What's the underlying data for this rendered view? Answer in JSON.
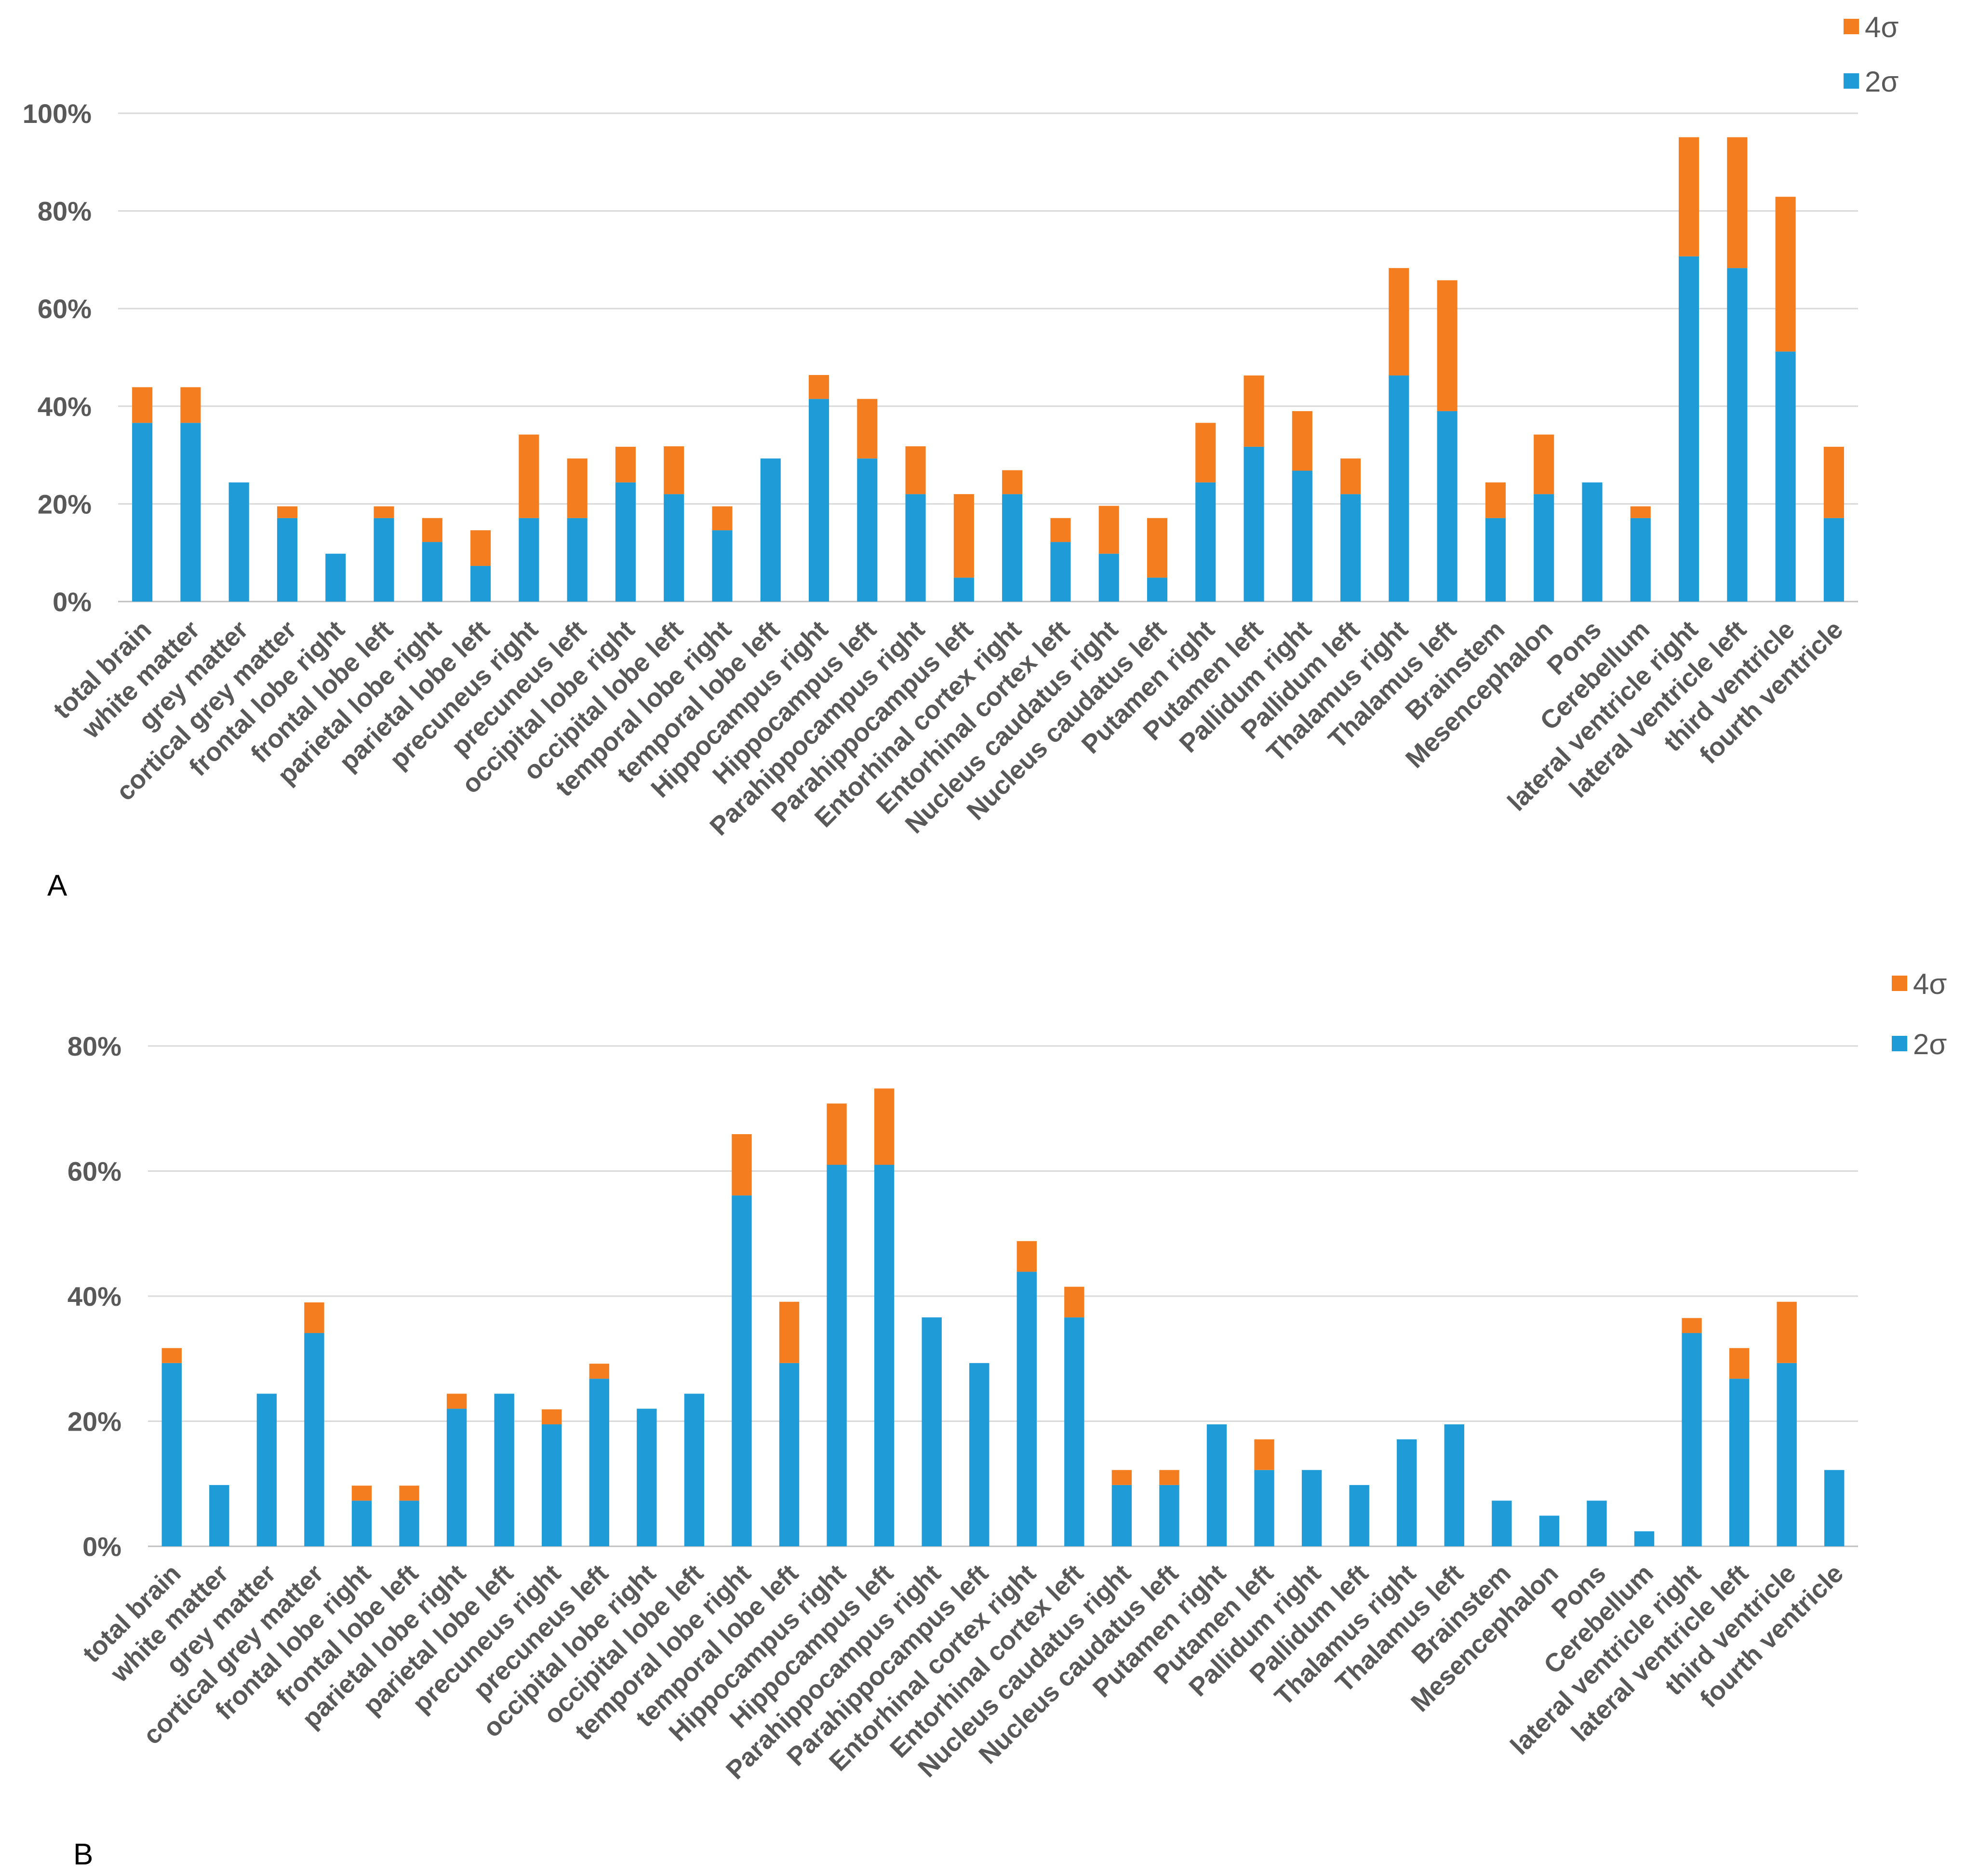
{
  "colors": {
    "series_2sigma": "#1f9bd7",
    "series_4sigma": "#f47d20",
    "text": "#595959",
    "grid": "#d9d9d9"
  },
  "chart_data": [
    {
      "panel_label": "A",
      "type": "bar",
      "stacked": true,
      "title": "",
      "xlabel": "",
      "ylabel": "",
      "ylim": [
        0,
        100
      ],
      "y_ticks": [
        "0%",
        "20%",
        "40%",
        "60%",
        "80%",
        "100%"
      ],
      "grid": true,
      "legend_position": "top-right",
      "legend": [
        "4σ",
        "2σ"
      ],
      "categories": [
        "total brain",
        "white matter",
        "grey matter",
        "cortical grey matter",
        "frontal lobe right",
        "frontal lobe left",
        "parietal lobe right",
        "parietal lobe left",
        "precuneus right",
        "precuneus left",
        "occipital lobe right",
        "occipital lobe left",
        "temporal lobe right",
        "temporal lobe left",
        "Hippocampus right",
        "Hippocampus left",
        "Parahippocampus right",
        "Parahippocampus left",
        "Entorhinal cortex right",
        "Entorhinal cortex left",
        "Nucleus caudatus right",
        "Nucleus caudatus left",
        "Putamen right",
        "Putamen left",
        "Pallidum right",
        "Pallidum left",
        "Thalamus right",
        "Thalamus left",
        "Brainstem",
        "Mesencephalon",
        "Pons",
        "Cerebellum",
        "lateral ventricle right",
        "lateral ventricle left",
        "third ventricle",
        "fourth ventricle"
      ],
      "series": [
        {
          "name": "2σ",
          "values": [
            36.6,
            36.6,
            24.4,
            17.1,
            9.8,
            17.1,
            12.2,
            7.3,
            17.1,
            17.1,
            24.4,
            22.0,
            14.6,
            29.3,
            41.5,
            29.3,
            22.0,
            4.9,
            22.0,
            12.2,
            9.8,
            4.9,
            24.4,
            31.7,
            26.8,
            22.0,
            46.3,
            39.0,
            17.1,
            22.0,
            24.4,
            17.1,
            70.7,
            68.3,
            51.2,
            17.1
          ]
        },
        {
          "name": "4σ",
          "values": [
            7.3,
            7.3,
            0,
            2.4,
            0,
            2.4,
            4.9,
            7.3,
            17.1,
            12.2,
            7.3,
            9.8,
            4.9,
            0,
            4.9,
            12.2,
            9.8,
            17.1,
            4.9,
            4.9,
            9.8,
            12.2,
            12.2,
            14.6,
            12.2,
            7.3,
            22.0,
            26.8,
            7.3,
            12.2,
            0,
            2.4,
            24.4,
            26.8,
            31.7,
            14.6
          ]
        }
      ]
    },
    {
      "panel_label": "B",
      "type": "bar",
      "stacked": true,
      "title": "",
      "xlabel": "",
      "ylabel": "",
      "ylim": [
        0,
        80
      ],
      "y_ticks": [
        "0%",
        "20%",
        "40%",
        "60%",
        "80%"
      ],
      "grid": true,
      "legend_position": "top-right",
      "legend": [
        "4σ",
        "2σ"
      ],
      "categories": [
        "total brain",
        "white matter",
        "grey matter",
        "cortical grey matter",
        "frontal lobe right",
        "frontal lobe left",
        "parietal lobe right",
        "parietal lobe left",
        "precuneus right",
        "precuneus left",
        "occipital lobe right",
        "occipital lobe left",
        "temporal lobe right",
        "temporal lobe left",
        "Hippocampus right",
        "Hippocampus left",
        "Parahippocampus right",
        "Parahippocampus left",
        "Entorhinal cortex right",
        "Entorhinal cortex left",
        "Nucleus caudatus right",
        "Nucleus caudatus left",
        "Putamen right",
        "Putamen left",
        "Pallidum right",
        "Pallidum left",
        "Thalamus right",
        "Thalamus left",
        "Brainstem",
        "Mesencephalon",
        "Pons",
        "Cerebellum",
        "lateral ventricle right",
        "lateral ventricle left",
        "third ventricle",
        "fourth ventricle"
      ],
      "series": [
        {
          "name": "2σ",
          "values": [
            29.3,
            9.8,
            24.4,
            34.1,
            7.3,
            7.3,
            22.0,
            24.4,
            19.5,
            26.8,
            22.0,
            24.4,
            56.1,
            29.3,
            61.0,
            61.0,
            36.6,
            29.3,
            43.9,
            36.6,
            9.8,
            9.8,
            19.5,
            12.2,
            12.2,
            9.8,
            17.1,
            19.5,
            7.3,
            4.9,
            7.3,
            2.4,
            34.1,
            26.8,
            29.3,
            12.2
          ]
        },
        {
          "name": "4σ",
          "values": [
            2.4,
            0,
            0,
            4.9,
            2.4,
            2.4,
            2.4,
            0,
            2.4,
            2.4,
            0,
            0,
            9.8,
            9.8,
            9.8,
            12.2,
            0,
            0,
            4.9,
            4.9,
            2.4,
            2.4,
            0,
            4.9,
            0,
            0,
            0,
            0,
            0,
            0,
            0,
            0,
            2.4,
            4.9,
            9.8,
            0
          ]
        }
      ]
    }
  ]
}
